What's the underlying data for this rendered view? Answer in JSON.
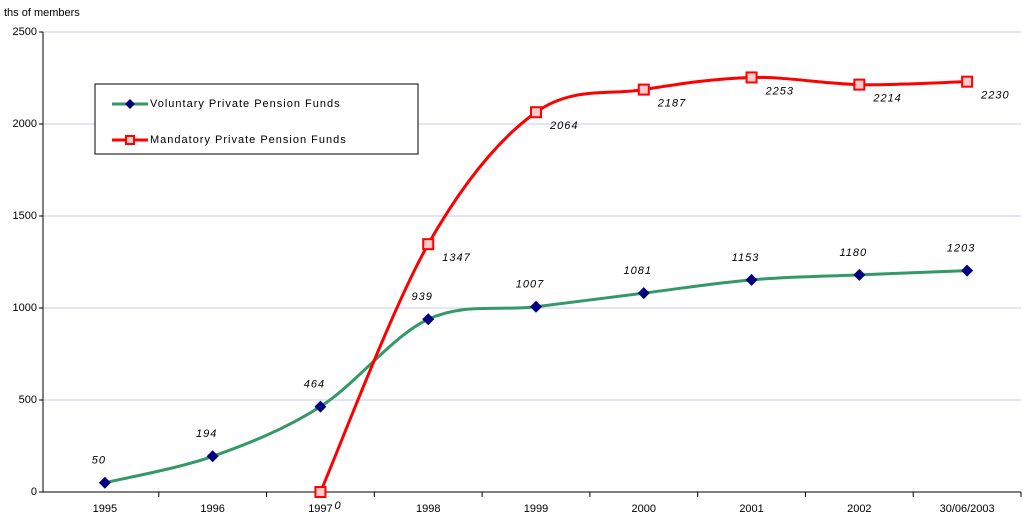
{
  "chart_data": {
    "type": "line",
    "y_label": "ths of members",
    "categories": [
      "1995",
      "1996",
      "1997",
      "1998",
      "1999",
      "2000",
      "2001",
      "2002",
      "30/06/2003"
    ],
    "series": [
      {
        "name": "Voluntary Private Pension Funds",
        "color": "#339966",
        "marker_color": "#000080",
        "marker": "diamond",
        "values": [
          50,
          194,
          464,
          939,
          1007,
          1081,
          1153,
          1180,
          1203
        ]
      },
      {
        "name": "Mandatory Private Pension Funds",
        "color": "#ff0000",
        "marker_color": "#ff0000",
        "marker": "square",
        "values": [
          null,
          null,
          0,
          1347,
          2064,
          2187,
          2253,
          2214,
          2230
        ]
      }
    ],
    "ylim": [
      0,
      2500
    ],
    "yticks": [
      0,
      500,
      1000,
      1500,
      2000,
      2500
    ],
    "grid": true,
    "legend": "upper left"
  }
}
